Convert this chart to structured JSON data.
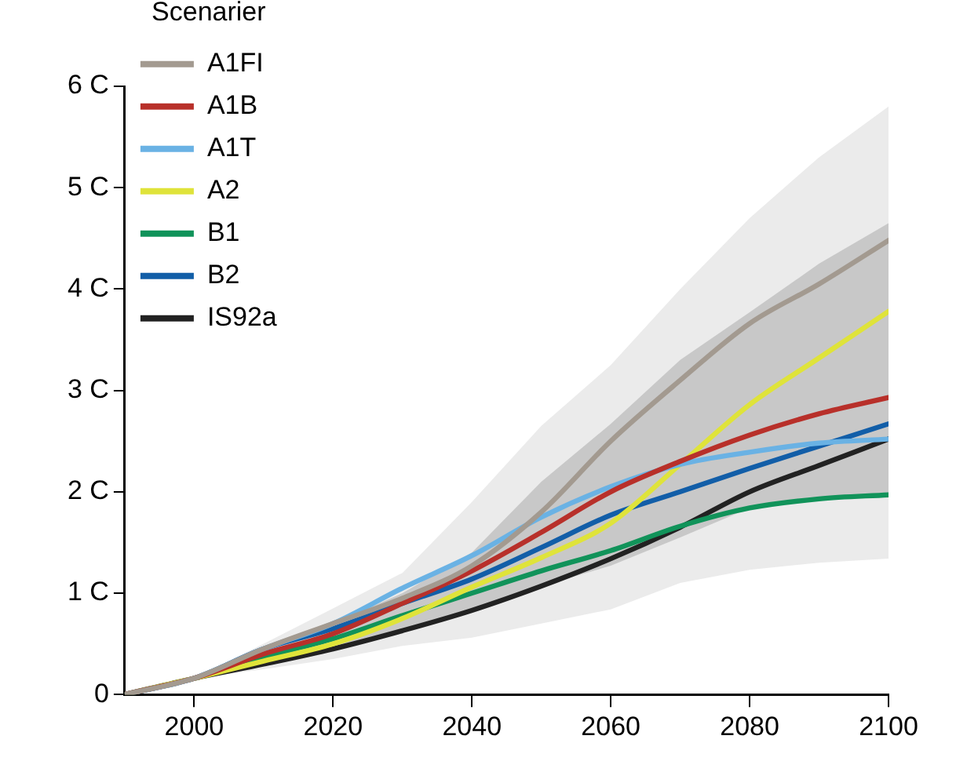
{
  "chart_data": {
    "type": "line",
    "legend_title": "Scenarier",
    "legend": "top left",
    "grid": false,
    "marker": "none",
    "line_style": "solid",
    "x": [
      1990,
      2000,
      2010,
      2020,
      2030,
      2040,
      2050,
      2060,
      2070,
      2080,
      2090,
      2100
    ],
    "xlim": [
      1990,
      2100
    ],
    "xticks": [
      2000,
      2020,
      2040,
      2060,
      2080,
      2100
    ],
    "ylim": [
      0,
      6
    ],
    "yticks": [
      0,
      {
        "value": 1,
        "label": "1 C"
      },
      {
        "value": 2,
        "label": "2 C"
      },
      {
        "value": 3,
        "label": "3 C"
      },
      {
        "value": 4,
        "label": "4 C"
      },
      {
        "value": 5,
        "label": "5 C"
      },
      {
        "value": 6,
        "label": "6 C"
      }
    ],
    "series": [
      {
        "type": "area",
        "color": "#ebebeb",
        "values": [
          null,
          null,
          null,
          null,
          null,
          null,
          null,
          null,
          null,
          null,
          null,
          null
        ],
        "lower": [
          0,
          0.16,
          0.25,
          0.35,
          0.48,
          0.56,
          0.7,
          0.84,
          1.1,
          1.23,
          1.3,
          1.34
        ],
        "upper": [
          0,
          0.16,
          0.5,
          0.85,
          1.2,
          1.9,
          2.65,
          3.25,
          4.0,
          4.7,
          5.3,
          5.8
        ]
      },
      {
        "type": "area",
        "color": "#c8c8c8",
        "values": [
          null,
          null,
          null,
          null,
          null,
          null,
          null,
          null,
          null,
          null,
          null,
          null
        ],
        "lower": [
          0,
          0.16,
          0.3,
          0.45,
          0.63,
          0.85,
          1.07,
          1.27,
          1.55,
          1.84,
          1.93,
          1.97
        ],
        "upper": [
          0,
          0.16,
          0.45,
          0.7,
          1.0,
          1.4,
          2.1,
          2.67,
          3.3,
          3.77,
          4.25,
          4.65
        ]
      },
      {
        "name": "A1FI",
        "color": "#a39a90",
        "values": [
          0,
          0.16,
          0.45,
          0.7,
          0.95,
          1.27,
          1.8,
          2.5,
          3.1,
          3.66,
          4.05,
          4.48
        ]
      },
      {
        "name": "A1B",
        "color": "#b8302a",
        "values": [
          0,
          0.16,
          0.4,
          0.6,
          0.9,
          1.22,
          1.6,
          2.0,
          2.3,
          2.56,
          2.77,
          2.93
        ]
      },
      {
        "name": "A1T",
        "color": "#6ab2e4",
        "values": [
          0,
          0.16,
          0.45,
          0.7,
          1.05,
          1.37,
          1.75,
          2.05,
          2.27,
          2.39,
          2.48,
          2.52
        ]
      },
      {
        "name": "A2",
        "color": "#dfe33a",
        "values": [
          0,
          0.16,
          0.33,
          0.5,
          0.75,
          1.06,
          1.35,
          1.69,
          2.27,
          2.86,
          3.32,
          3.78
        ]
      },
      {
        "name": "B1",
        "color": "#11935a",
        "values": [
          0,
          0.16,
          0.37,
          0.55,
          0.78,
          1.0,
          1.22,
          1.42,
          1.66,
          1.84,
          1.93,
          1.97
        ]
      },
      {
        "name": "B2",
        "color": "#125ea8",
        "values": [
          0,
          0.16,
          0.45,
          0.65,
          0.9,
          1.14,
          1.45,
          1.77,
          2.0,
          2.23,
          2.45,
          2.67
        ]
      },
      {
        "name": "IS92a",
        "color": "#222222",
        "values": [
          0,
          0.16,
          0.3,
          0.45,
          0.63,
          0.83,
          1.07,
          1.34,
          1.65,
          2.0,
          2.26,
          2.52
        ]
      }
    ]
  }
}
